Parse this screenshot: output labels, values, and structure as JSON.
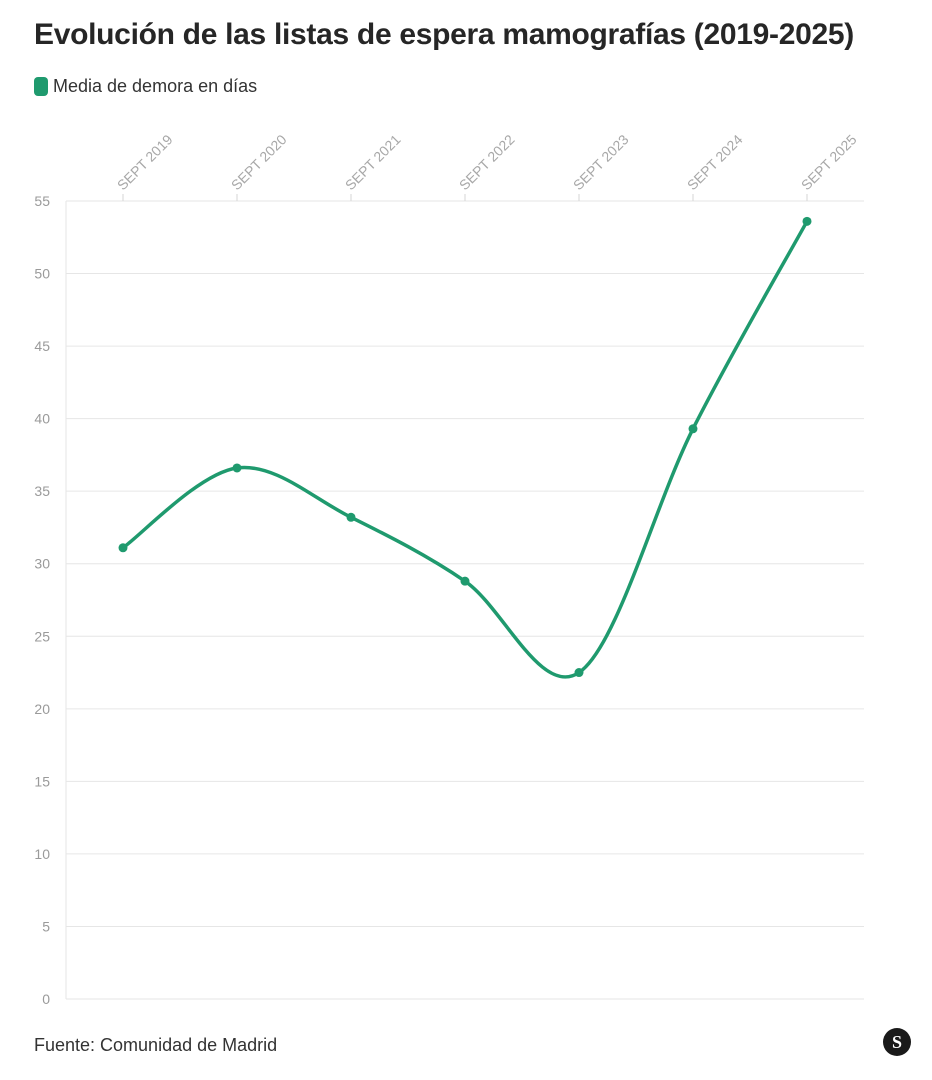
{
  "title": "Evolución de las listas de espera mamografías (2019-2025)",
  "legend": {
    "label": "Media de demora en días",
    "color": "#1f9a6e"
  },
  "source": "Fuente: Comunidad de Madrid",
  "brand_logo": "S",
  "chart_data": {
    "type": "line",
    "title": "Evolución de las listas de espera mamografías (2019-2025)",
    "xlabel": "",
    "ylabel": "",
    "categories": [
      "SEPT 2019",
      "SEPT 2020",
      "SEPT 2021",
      "SEPT 2022",
      "SEPT 2023",
      "SEPT 2024",
      "SEPT 2025"
    ],
    "series": [
      {
        "name": "Media de demora en días",
        "color": "#1f9a6e",
        "values": [
          31.1,
          36.6,
          33.2,
          28.8,
          22.5,
          39.3,
          53.6
        ]
      }
    ],
    "ylim": [
      0,
      55
    ],
    "yticks": [
      0,
      5,
      10,
      15,
      20,
      25,
      30,
      35,
      40,
      45,
      50,
      55
    ],
    "grid": true,
    "legend_position": "top-left",
    "x_axis_position": "top"
  }
}
